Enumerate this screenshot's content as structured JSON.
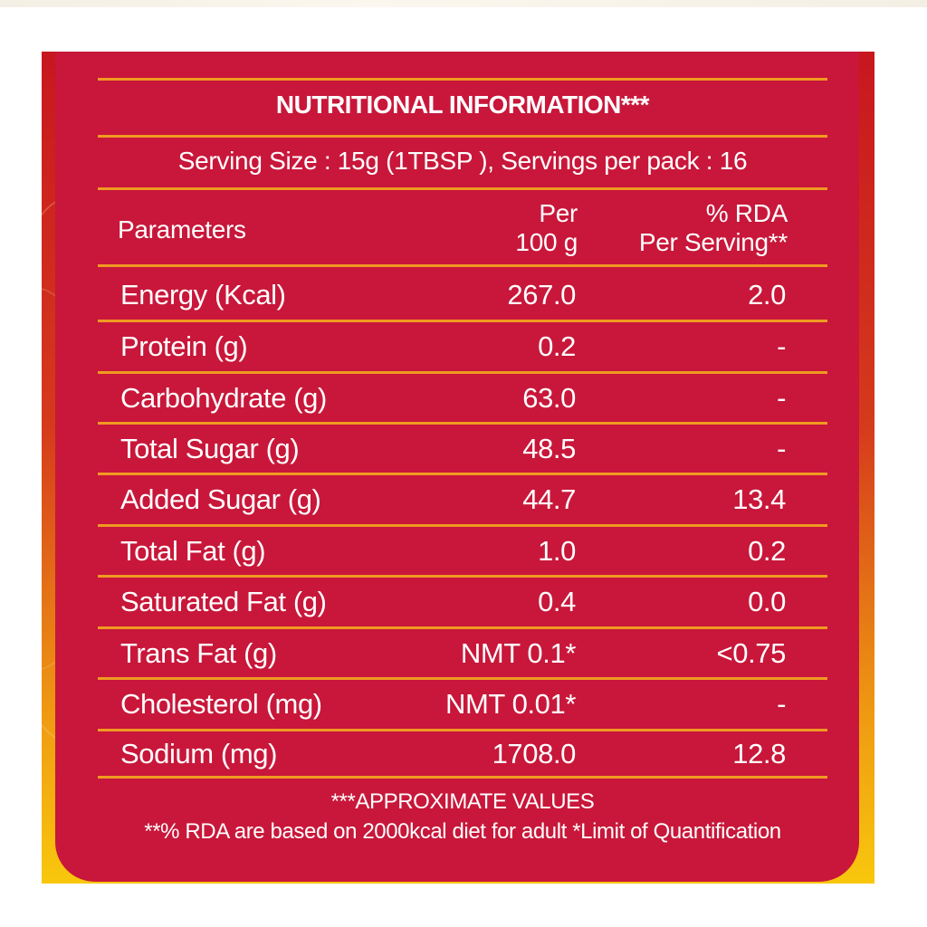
{
  "title": "NUTRITIONAL INFORMATION***",
  "serving": "Serving Size : 15g (1TBSP ),  Servings per pack : 16",
  "headers": {
    "parameters": "Parameters",
    "per100_line1": "Per",
    "per100_line2": "100 g",
    "rda_line1": "% RDA",
    "rda_line2": "Per Serving**"
  },
  "rows": [
    {
      "name": "Energy (Kcal)",
      "per100": "267.0",
      "rda": "2.0"
    },
    {
      "name": "Protein (g)",
      "per100": "0.2",
      "rda": "-"
    },
    {
      "name": "Carbohydrate (g)",
      "per100": "63.0",
      "rda": "-"
    },
    {
      "name": "Total Sugar (g)",
      "per100": "48.5",
      "rda": "-"
    },
    {
      "name": "Added Sugar (g)",
      "per100": "44.7",
      "rda": "13.4"
    },
    {
      "name": "Total Fat (g)",
      "per100": "1.0",
      "rda": "0.2"
    },
    {
      "name": "Saturated Fat (g)",
      "per100": "0.4",
      "rda": "0.0"
    },
    {
      "name": "Trans Fat (g)",
      "per100": "NMT 0.1*",
      "rda": "<0.75"
    },
    {
      "name": "Cholesterol (mg)",
      "per100": "NMT 0.01*",
      "rda": "-"
    },
    {
      "name": "Sodium (mg)",
      "per100": "1708.0",
      "rda": "12.8"
    }
  ],
  "footnotes": {
    "line1": "***APPROXIMATE VALUES",
    "line2": "**% RDA are based on 2000kcal diet for adult *Limit of Quantification"
  },
  "colors": {
    "panel": "#c8173a",
    "rule": "#f09a22",
    "text": "#ffffff"
  }
}
